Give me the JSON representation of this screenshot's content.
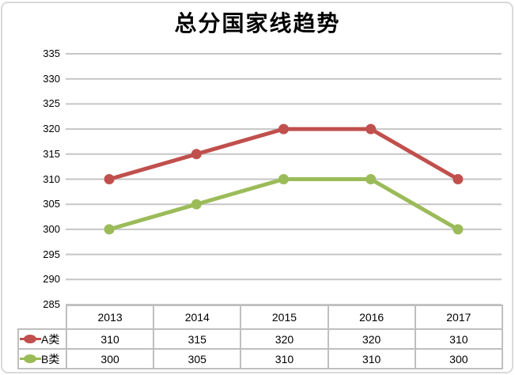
{
  "title": "总分国家线趋势",
  "colors": {
    "series_a": "#C0504D",
    "series_b": "#9BBB59",
    "gridline": "#C6C6C6",
    "table_border": "#BFBFBF",
    "frame_border": "#D9D9D9",
    "text": "#000000"
  },
  "chart_data": {
    "type": "line",
    "title": "总分国家线趋势",
    "categories": [
      "2013",
      "2014",
      "2015",
      "2016",
      "2017"
    ],
    "series": [
      {
        "name": "A类",
        "color": "#C0504D",
        "values": [
          310,
          315,
          320,
          320,
          310
        ]
      },
      {
        "name": "B类",
        "color": "#9BBB59",
        "values": [
          300,
          305,
          310,
          310,
          300
        ]
      }
    ],
    "xlabel": "",
    "ylabel": "",
    "ylim": [
      285,
      335
    ],
    "yticks": [
      335,
      330,
      325,
      320,
      315,
      310,
      305,
      300,
      295,
      290,
      285
    ],
    "grid": "horizontal-only",
    "legend_position": "data-table-left",
    "data_table": true,
    "marker": "circle"
  }
}
